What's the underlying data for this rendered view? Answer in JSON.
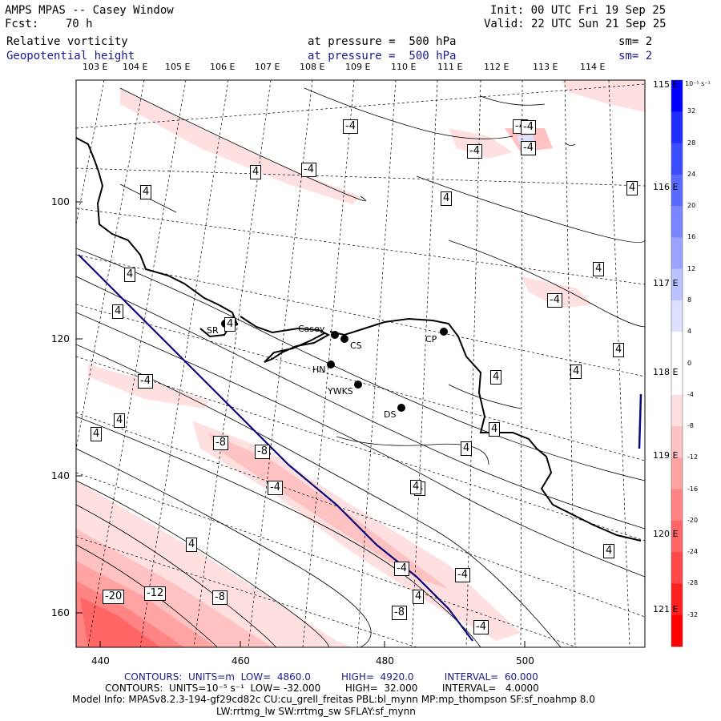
{
  "header": {
    "title": "AMPS MPAS -- Casey Window",
    "forecast": "Fcst:    70 h",
    "init": "Init: 00 UTC Fri 19 Sep 25",
    "valid": "Valid: 22 UTC Sun 21 Sep 25",
    "field1_name": "Relative vorticity",
    "field1_level": "at pressure =  500 hPa",
    "field1_sm": "sm= 2",
    "field2_name": "Geopotential height",
    "field2_level": "at pressure =  500 hPa",
    "field2_sm": "sm= 2"
  },
  "axes": {
    "top_lon": [
      "103 E",
      "104 E",
      "105 E",
      "106 E",
      "107 E",
      "108 E",
      "109 E",
      "110 E",
      "111 E",
      "112 E",
      "113 E",
      "114 E"
    ],
    "right_lon": [
      "115 E",
      "116 E",
      "117 E",
      "118 E",
      "119 E",
      "120 E",
      "121 E"
    ],
    "left_y": [
      "100",
      "120",
      "140",
      "160"
    ],
    "bottom_x": [
      "440",
      "460",
      "480",
      "500"
    ]
  },
  "stations": [
    {
      "id": "casey",
      "label": "Casey"
    },
    {
      "id": "cs",
      "label": "CS"
    },
    {
      "id": "cp",
      "label": "CP"
    },
    {
      "id": "hn",
      "label": "HN"
    },
    {
      "id": "ywks",
      "label": "YWKS"
    },
    {
      "id": "ds",
      "label": "DS"
    },
    {
      "id": "sr",
      "label": "SR"
    }
  ],
  "contour_labels": [
    "-4",
    "-4",
    "-4",
    "-4",
    "4",
    "4",
    "4",
    "4",
    "4",
    "4",
    "4",
    "-4",
    "4",
    "-4",
    "4",
    "4",
    "4",
    "4",
    "-4",
    "4",
    "4",
    "-8",
    "-8",
    "-4",
    "4",
    "4",
    "-4",
    "4",
    "-4",
    "-20",
    "-12",
    "-8",
    "-8",
    "-4",
    "4",
    "4",
    "-4",
    "4"
  ],
  "colorbar": {
    "unit": "10⁻⁵ s⁻¹",
    "ticks": [
      "32",
      "28",
      "24",
      "20",
      "16",
      "12",
      "8",
      "4",
      "0",
      "-4",
      "-8",
      "-12",
      "-16",
      "-20",
      "-24",
      "-28",
      "-32"
    ],
    "colors": [
      "#0000ff",
      "#1f2dff",
      "#3c4cff",
      "#5a6aff",
      "#7a86ff",
      "#9aa3ff",
      "#bcc2ff",
      "#dde0ff",
      "#ffffff",
      "#ffffff",
      "#ffe0e0",
      "#ffc2c2",
      "#ffa3a3",
      "#ff8585",
      "#ff6666",
      "#ff4747",
      "#ff2020",
      "#ff0000"
    ]
  },
  "footer": {
    "line1": "CONTOURS:  UNITS=m  LOW=  4860.0          HIGH=  4920.0          INTERVAL=  60.000",
    "line2": "CONTOURS:  UNITS=10⁻⁵ s⁻¹  LOW= -32.000        HIGH=  32.000        INTERVAL=   4.0000",
    "line3": "Model Info: MPASv8.2.3-194-gf29cd82c CU:cu_grell_freitas PBL:bl_mynn MP:mp_thompson SF:sf_noahmp 8.0",
    "line4": "LW:rrtmg_lw SW:rrtmg_sw SFLAY:sf_mynn"
  },
  "colors": {
    "blue_text": "#1a1a8c",
    "height_contour": "#0a0a7a",
    "coast": "#000000"
  }
}
